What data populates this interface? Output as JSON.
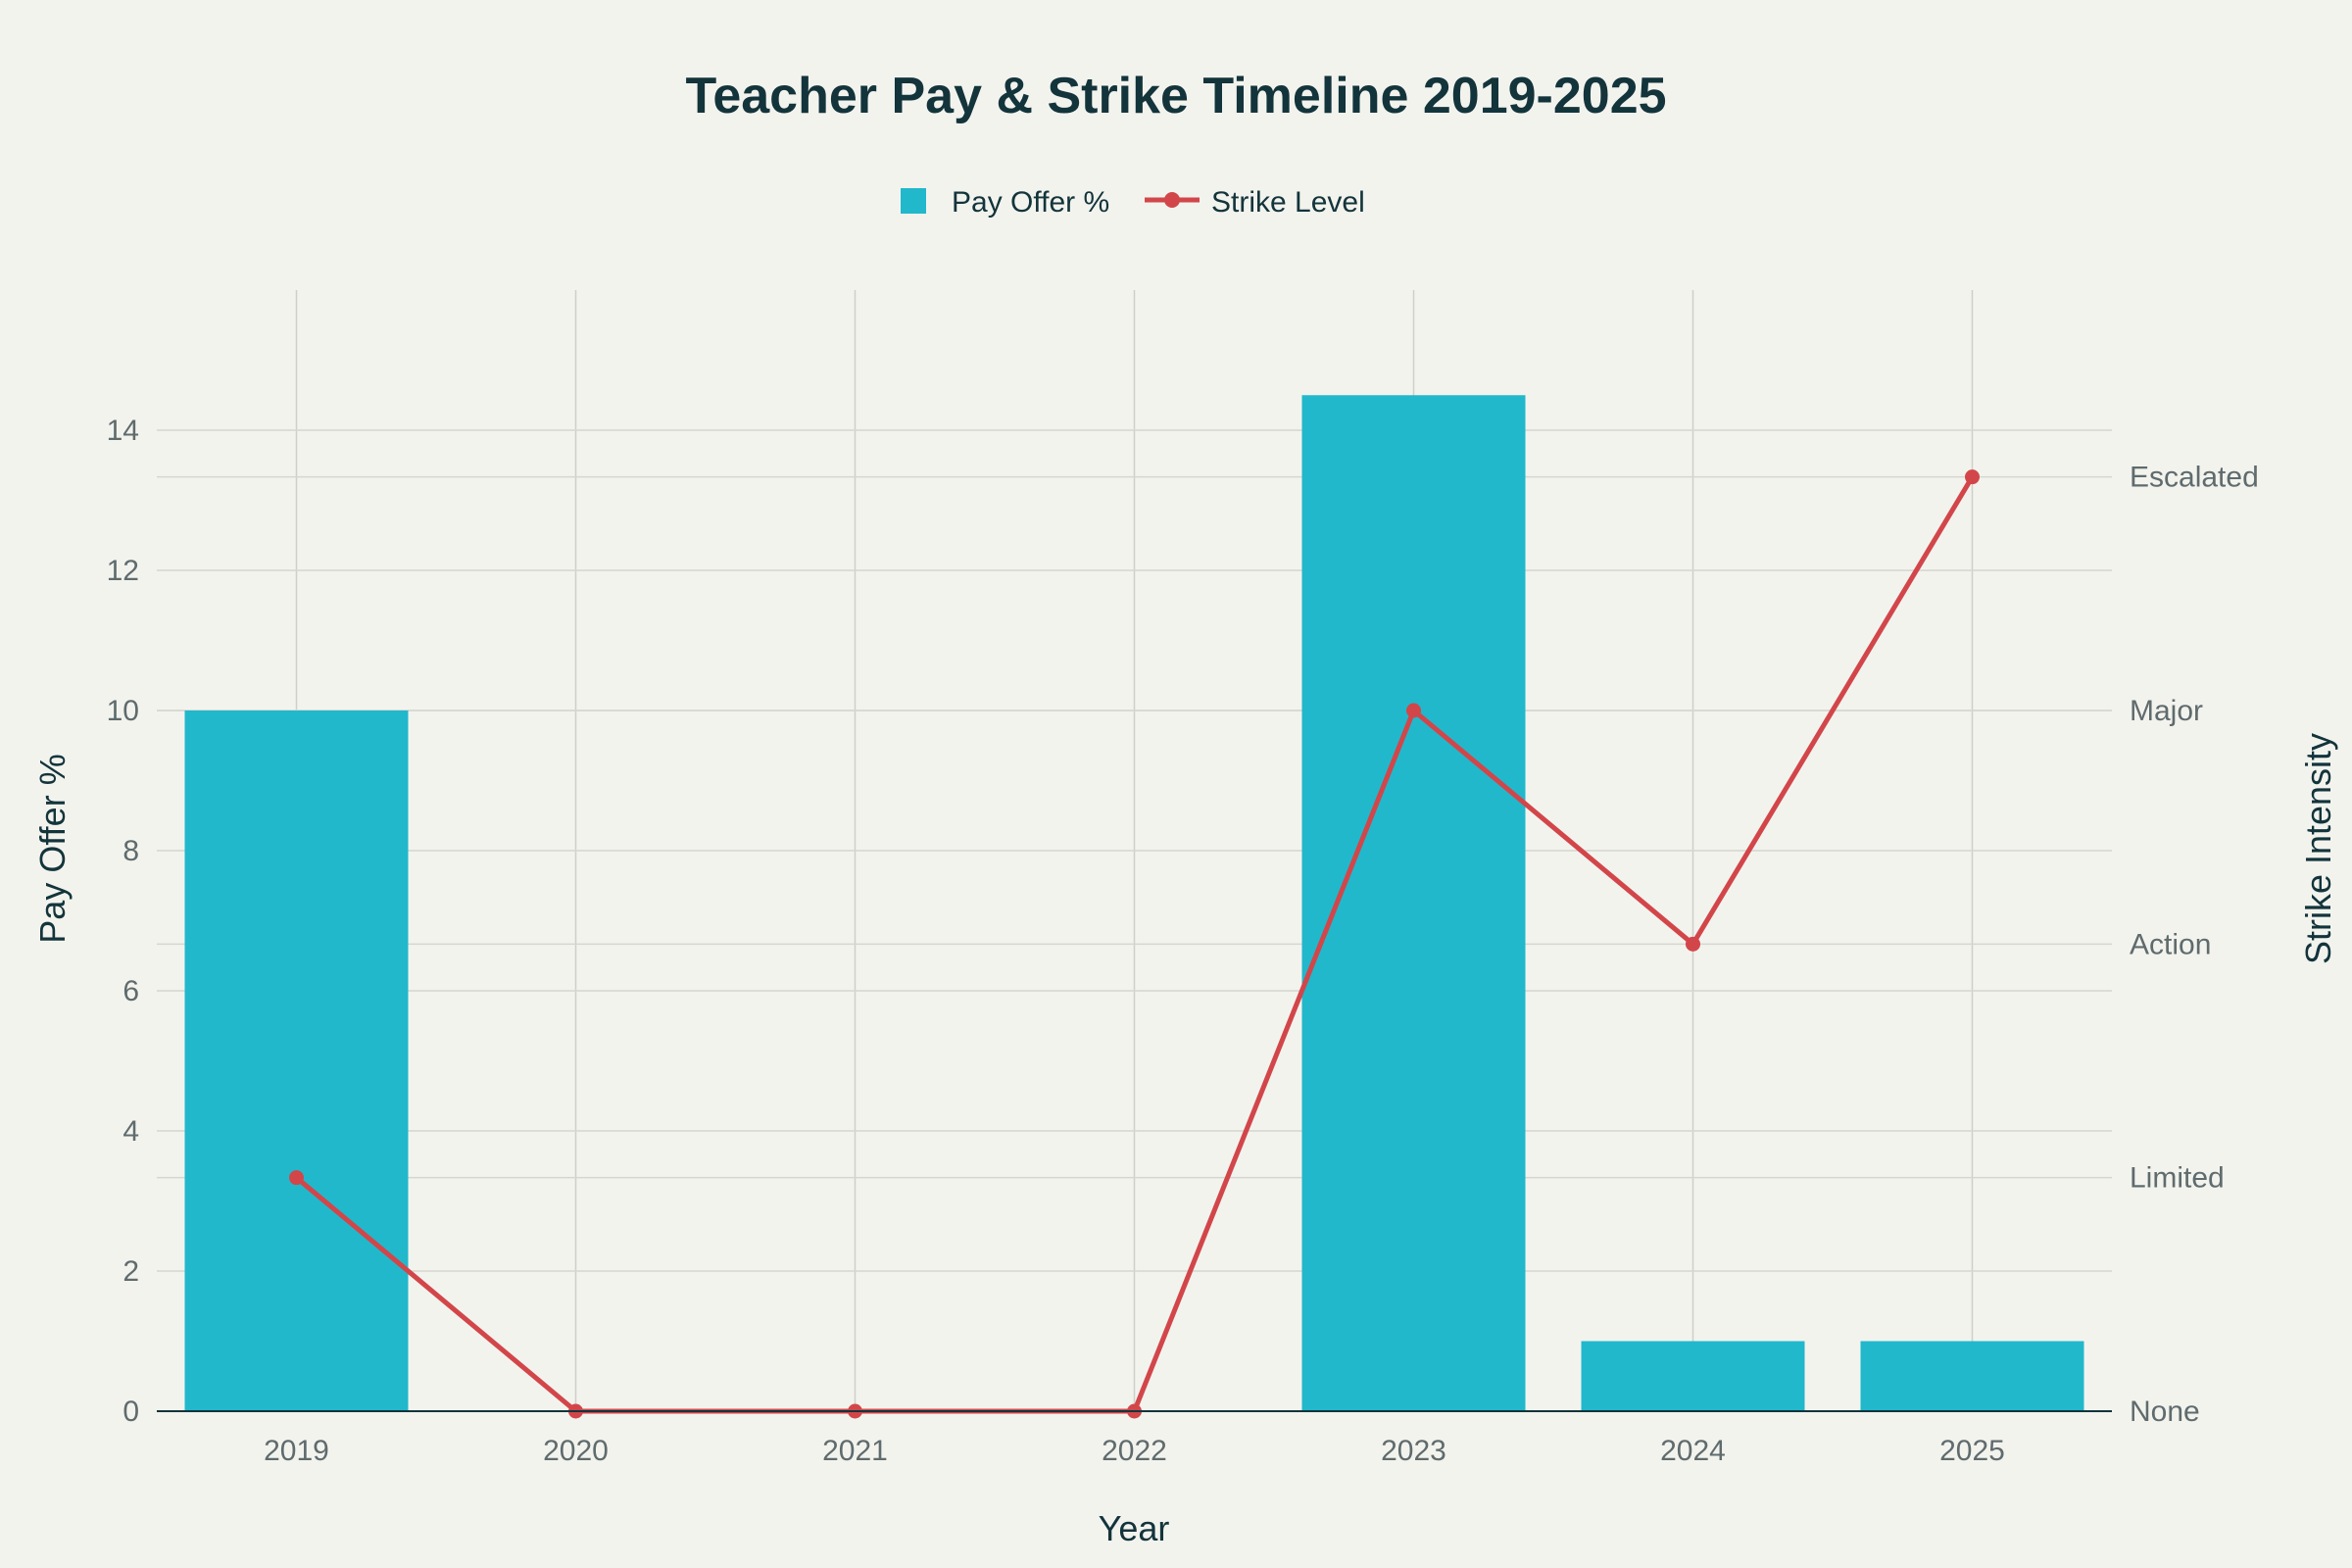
{
  "chart_data": {
    "type": "bar",
    "title": "Teacher Pay & Strike Timeline 2019-2025",
    "xlabel": "Year",
    "ylabel": "Pay Offer %",
    "y2label": "Strike Intensity",
    "categories": [
      "2019",
      "2020",
      "2021",
      "2022",
      "2023",
      "2024",
      "2025"
    ],
    "ylim": [
      0,
      16
    ],
    "yticks": [
      0,
      2,
      4,
      6,
      8,
      10,
      12,
      14
    ],
    "y2lim": [
      0,
      4.8
    ],
    "y2ticks": [
      {
        "value": 0,
        "label": "None"
      },
      {
        "value": 1,
        "label": "Limited"
      },
      {
        "value": 2,
        "label": "Action"
      },
      {
        "value": 3,
        "label": "Major"
      },
      {
        "value": 4,
        "label": "Escalated"
      }
    ],
    "series": [
      {
        "name": "Pay Offer %",
        "type": "bar",
        "axis": "left",
        "color": "#21b8cc",
        "values": [
          10,
          0,
          0,
          0,
          14.5,
          1,
          1
        ]
      },
      {
        "name": "Strike Level",
        "type": "line",
        "axis": "right",
        "color": "#d2464a",
        "values": [
          1,
          0,
          0,
          0,
          3,
          2,
          4
        ]
      }
    ],
    "legend_position": "top-center",
    "grid": true
  }
}
